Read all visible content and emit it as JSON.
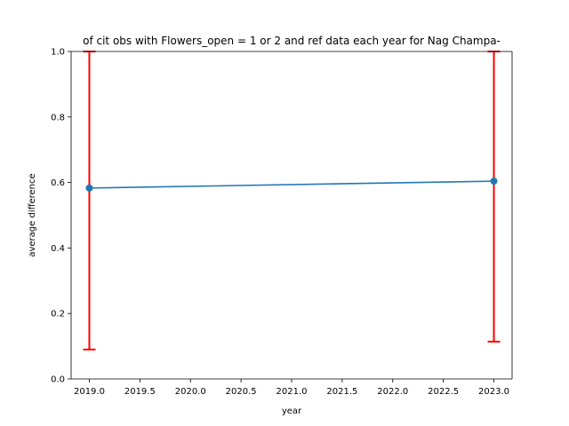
{
  "chart_data": {
    "type": "line",
    "title": "of cit obs with Flowers_open = 1 or 2 and ref data each year for Nag Champa-",
    "xlabel": "year",
    "ylabel": "average difference",
    "xlim": [
      2018.82,
      2023.18
    ],
    "ylim": [
      0.0,
      1.0
    ],
    "xticks": [
      2019.0,
      2019.5,
      2020.0,
      2020.5,
      2021.0,
      2021.5,
      2022.0,
      2022.5,
      2023.0
    ],
    "xtick_labels": [
      "2019.0",
      "2019.5",
      "2020.0",
      "2020.5",
      "2021.0",
      "2021.5",
      "2022.0",
      "2022.5",
      "2023.0"
    ],
    "yticks": [
      0.0,
      0.2,
      0.4,
      0.6,
      0.8,
      1.0
    ],
    "ytick_labels": [
      "0.0",
      "0.2",
      "0.4",
      "0.6",
      "0.8",
      "1.0"
    ],
    "grid": false,
    "series": [
      {
        "x": [
          2019,
          2023
        ],
        "y": [
          0.583,
          0.604
        ],
        "err_low": [
          0.09,
          0.114
        ],
        "err_high": [
          1.0,
          1.0
        ],
        "color": "#1f77b4",
        "error_color": "#ff0000"
      }
    ]
  }
}
